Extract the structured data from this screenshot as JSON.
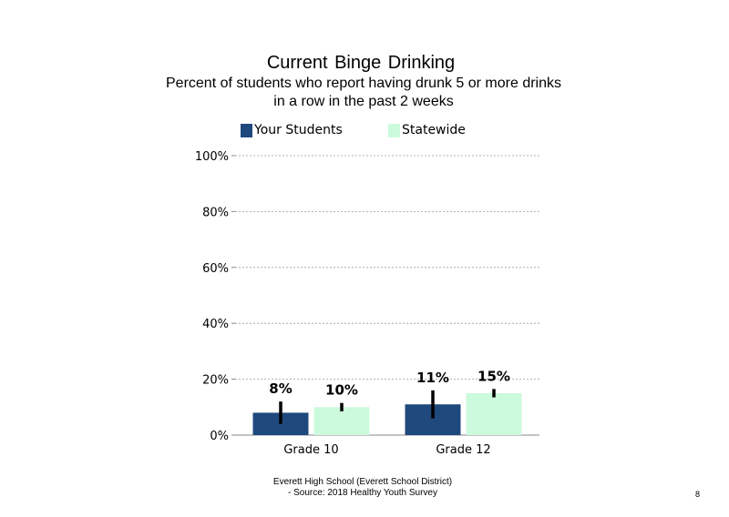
{
  "chart_data": {
    "type": "bar",
    "title": "Current  Binge  Drinking",
    "subtitle": [
      "Percent of students who report having drunk 5 or more drinks",
      "in a row in the past 2 weeks"
    ],
    "categories": [
      "Grade 10",
      "Grade 12"
    ],
    "series": [
      {
        "name": "Your Students",
        "color": "#1f497d",
        "values": [
          8,
          11
        ],
        "error_low": [
          4,
          6
        ],
        "error_high": [
          12,
          16
        ],
        "labels": [
          "8%",
          "11%"
        ]
      },
      {
        "name": "Statewide",
        "color": "#ccfadc",
        "values": [
          10,
          15
        ],
        "error_low": [
          8.5,
          13.5
        ],
        "error_high": [
          11.5,
          16.5
        ],
        "labels": [
          "10%",
          "15%"
        ]
      }
    ],
    "ylim": [
      0,
      100
    ],
    "yticks": [
      "0%",
      "20%",
      "40%",
      "60%",
      "80%",
      "100%"
    ],
    "grid": true,
    "legend_position": "top"
  },
  "footer": {
    "line1": "Everett  High  School  (Everett  School District)",
    "line2": "- Source: 2018 Healthy  Youth Survey"
  },
  "page_number": "8"
}
